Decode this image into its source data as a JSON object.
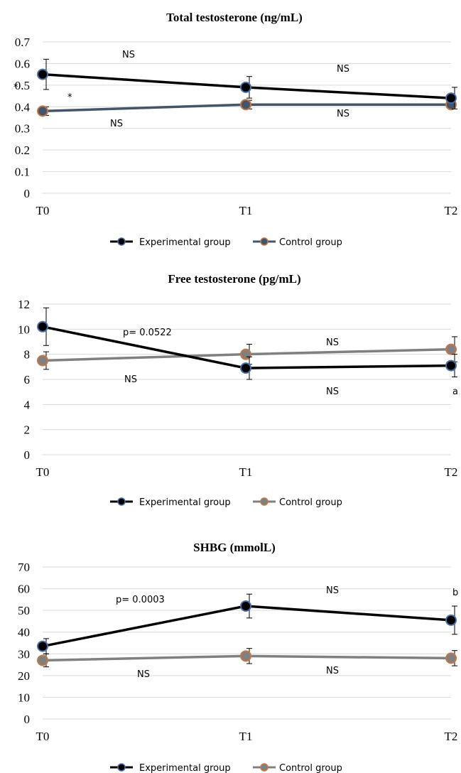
{
  "chart_data": [
    {
      "type": "line",
      "title": "Total testosterone (ng/mL)",
      "categories": [
        "T0",
        "T1",
        "T2"
      ],
      "ylim": [
        0,
        0.7
      ],
      "yticks": [
        "0",
        "0.1",
        "0.2",
        "0.3",
        "0.4",
        "0.5",
        "0.6",
        "0.7"
      ],
      "grid": true,
      "legend_position": "bottom",
      "series": [
        {
          "name": "Experimental group",
          "values": [
            0.55,
            0.49,
            0.44
          ],
          "error": [
            0.07,
            0.05,
            0.05
          ],
          "color": "#000000",
          "marker_edge": "#4a6fa5"
        },
        {
          "name": "Control group",
          "values": [
            0.38,
            0.41,
            0.41
          ],
          "error": [
            0.02,
            0.02,
            0.0
          ],
          "color": "#44546a",
          "marker_edge": "#c0784a"
        }
      ],
      "annotations": [
        "NS",
        "NS",
        "*",
        "*",
        "NS",
        "NS"
      ]
    },
    {
      "type": "line",
      "title": "Free testosterone (pg/mL)",
      "categories": [
        "T0",
        "T1",
        "T2"
      ],
      "ylim": [
        0,
        12
      ],
      "yticks": [
        "0",
        "2",
        "4",
        "6",
        "8",
        "10",
        "12"
      ],
      "grid": true,
      "legend_position": "bottom",
      "series": [
        {
          "name": "Experimental group",
          "values": [
            10.2,
            6.9,
            7.1
          ],
          "error": [
            1.5,
            0.9,
            0.9
          ],
          "color": "#000000",
          "marker_edge": "#4a6fa5"
        },
        {
          "name": "Control group",
          "values": [
            7.5,
            8.0,
            8.4
          ],
          "error": [
            0.7,
            0.8,
            1.0
          ],
          "color": "#808080",
          "marker_edge": "#c0784a"
        }
      ],
      "annotations": [
        "p= 0.0522",
        "NS",
        "NS",
        "NS",
        "a"
      ]
    },
    {
      "type": "line",
      "title": "SHBG (mmolL)",
      "categories": [
        "T0",
        "T1",
        "T2"
      ],
      "ylim": [
        0,
        70
      ],
      "yticks": [
        "0",
        "10",
        "20",
        "30",
        "40",
        "50",
        "60",
        "70"
      ],
      "grid": true,
      "legend_position": "bottom",
      "series": [
        {
          "name": "Experimental group",
          "values": [
            33.5,
            52,
            45.5
          ],
          "error": [
            3.5,
            5.5,
            6.5
          ],
          "color": "#000000",
          "marker_edge": "#4a6fa5"
        },
        {
          "name": "Control group",
          "values": [
            27,
            29,
            28
          ],
          "error": [
            3,
            3.5,
            3.5
          ],
          "color": "#808080",
          "marker_edge": "#c0784a"
        }
      ],
      "annotations": [
        "p= 0.0003",
        "NS",
        "b",
        "NS",
        "NS"
      ]
    }
  ]
}
